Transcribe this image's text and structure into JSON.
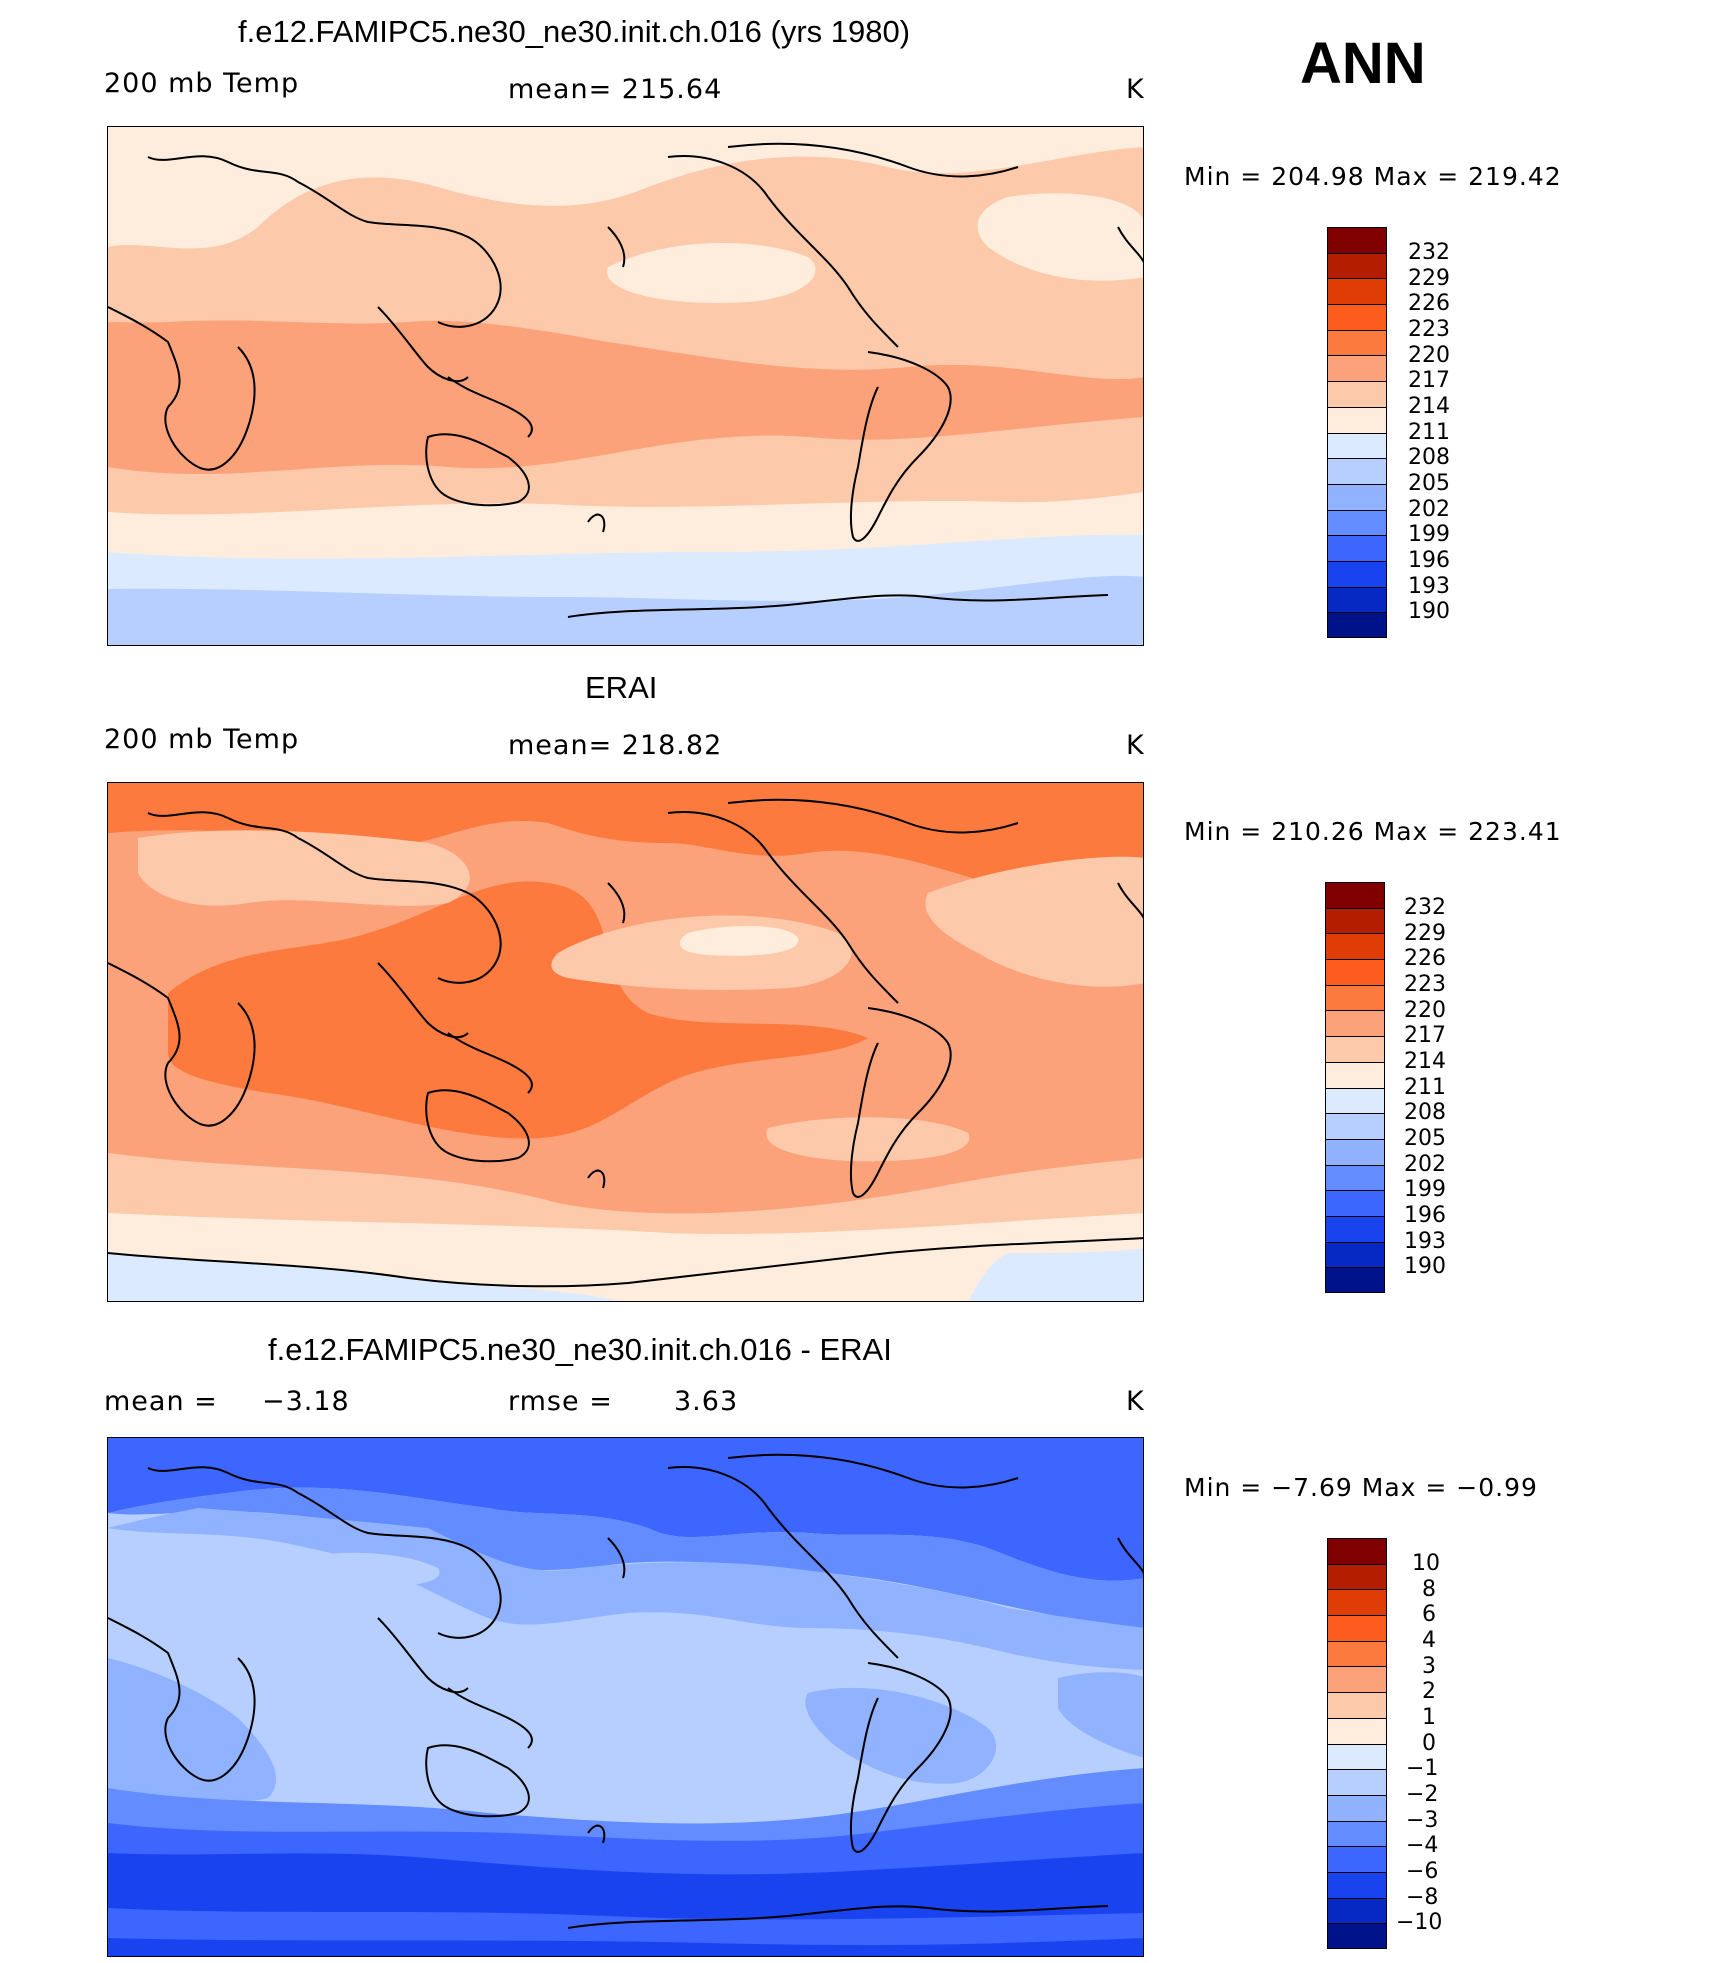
{
  "season": "ANN",
  "panels": [
    {
      "title": "f.e12.FAMIPC5.ne30_ne30.init.ch.016 (yrs 1980)",
      "left_label": "200 mb Temp",
      "mid_label": "mean= 215.64",
      "unit": "K",
      "minmax": "Min = 204.98 Max = 219.42",
      "colorbar": {
        "levels": [
          "232",
          "229",
          "226",
          "223",
          "220",
          "217",
          "214",
          "211",
          "208",
          "205",
          "202",
          "199",
          "196",
          "193",
          "190"
        ],
        "colors": [
          "#800000",
          "#b41e00",
          "#e03c06",
          "#fe5b1f",
          "#fd7a3e",
          "#fca27a",
          "#fdc9ab",
          "#feeddc",
          "#dbeaff",
          "#b6cfff",
          "#90b2ff",
          "#628cff",
          "#3c66ff",
          "#1a43f0",
          "#0629c4",
          "#00128a"
        ]
      },
      "fields": {
        "background": "#fca27a",
        "bands": [
          {
            "color": "#fdc9ab",
            "meaning": "band 214-217 north"
          },
          {
            "color": "#feeddc",
            "meaning": "band 211-214"
          },
          {
            "color": "#dbeaff",
            "meaning": "band 208-211"
          },
          {
            "color": "#b6cfff",
            "meaning": "band 205-208"
          }
        ]
      }
    },
    {
      "title": "ERAI",
      "left_label": "200 mb Temp",
      "mid_label": "mean= 218.82",
      "unit": "K",
      "minmax": "Min = 210.26 Max = 223.41",
      "colorbar": {
        "levels": [
          "232",
          "229",
          "226",
          "223",
          "220",
          "217",
          "214",
          "211",
          "208",
          "205",
          "202",
          "199",
          "196",
          "193",
          "190"
        ],
        "colors": [
          "#800000",
          "#b41e00",
          "#e03c06",
          "#fe5b1f",
          "#fd7a3e",
          "#fca27a",
          "#fdc9ab",
          "#feeddc",
          "#dbeaff",
          "#b6cfff",
          "#90b2ff",
          "#628cff",
          "#3c66ff",
          "#1a43f0",
          "#0629c4",
          "#00128a"
        ]
      }
    },
    {
      "title": "f.e12.FAMIPC5.ne30_ne30.init.ch.016 - ERAI",
      "left_label": "mean =",
      "left_value": "−3.18",
      "mid_label": "rmse =",
      "mid_value": "3.63",
      "unit": "K",
      "minmax": "Min = −7.69 Max = −0.99",
      "colorbar": {
        "levels": [
          "10",
          "8",
          "6",
          "4",
          "3",
          "2",
          "1",
          "0",
          "−1",
          "−2",
          "−3",
          "−4",
          "−6",
          "−8",
          "−10"
        ],
        "colors": [
          "#800000",
          "#b41e00",
          "#e03c06",
          "#fe5b1f",
          "#fd7a3e",
          "#fca27a",
          "#fdc9ab",
          "#feeddc",
          "#dbeaff",
          "#b6cfff",
          "#90b2ff",
          "#628cff",
          "#3c66ff",
          "#1a43f0",
          "#0629c4",
          "#00128a"
        ]
      }
    }
  ]
}
